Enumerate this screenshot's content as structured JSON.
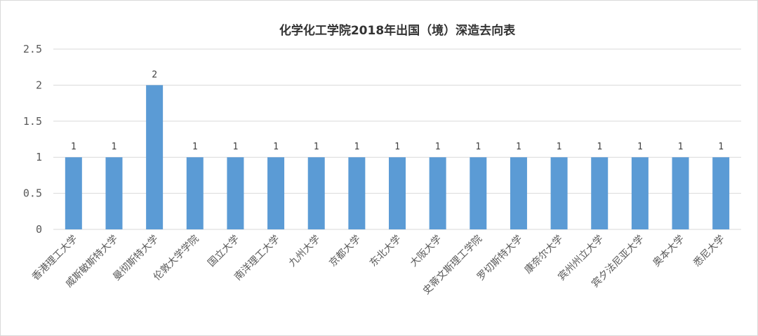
{
  "chart_data": {
    "type": "bar",
    "title": "化学化工学院2018年出国（境）深造去向表",
    "xlabel": "",
    "ylabel": "",
    "ylim": [
      0,
      2.5
    ],
    "yticks": [
      "0",
      "0.5",
      "1",
      "1.5",
      "2",
      "2.5"
    ],
    "grid": true,
    "legend": "none",
    "bar_color": "#5b9bd5",
    "categories": [
      "香港理工大学",
      "威斯敏斯特大学",
      "曼彻斯特大学",
      "伦敦大学学院",
      "国立大学",
      "南洋理工大学",
      "九州大学",
      "京都大学",
      "东北大学",
      "大阪大学",
      "史蒂文斯理工学院",
      "罗切斯特大学",
      "康奈尔大学",
      "宾州州立大学",
      "宾夕法尼亚大学",
      "奥本大学",
      "悉尼大学"
    ],
    "values": [
      1,
      1,
      2,
      1,
      1,
      1,
      1,
      1,
      1,
      1,
      1,
      1,
      1,
      1,
      1,
      1,
      1
    ],
    "data_labels": [
      "1",
      "1",
      "2",
      "1",
      "1",
      "1",
      "1",
      "1",
      "1",
      "1",
      "1",
      "1",
      "1",
      "1",
      "1",
      "1",
      "1"
    ]
  }
}
